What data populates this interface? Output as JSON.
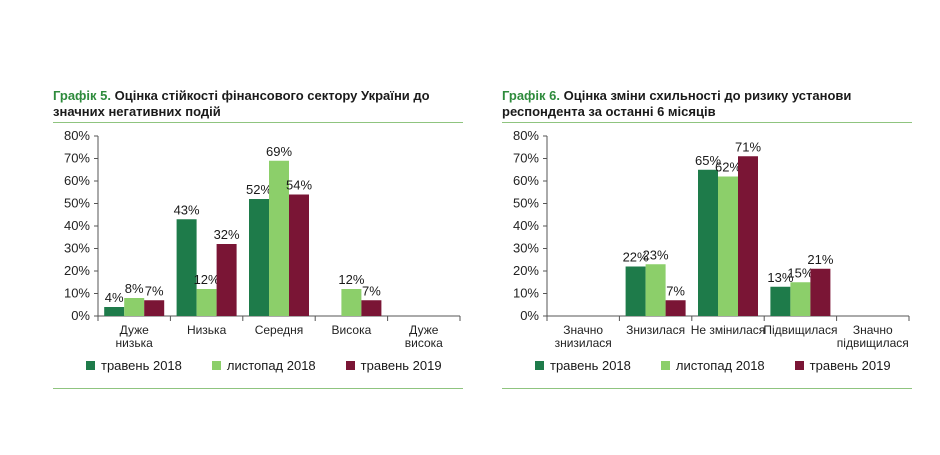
{
  "colors": {
    "s1": "#1e7b4a",
    "s2": "#8ccf6a",
    "s3": "#7a1535",
    "title_num": "#2e8b3c"
  },
  "legend": [
    "травень 2018",
    "листопад 2018",
    "травень 2019"
  ],
  "charts": [
    {
      "title_num": "Графік 5.",
      "title_text": " Оцінка стійкості фінансового сектору України до значних негативних подій"
    },
    {
      "title_num": "Графік 6.",
      "title_text": " Оцінка зміни схильності до ризику установи респондента за останні 6 місяців"
    }
  ],
  "chart_data": [
    {
      "type": "bar",
      "title": "Графік 5. Оцінка стійкості фінансового сектору України до значних негативних подій",
      "categories": [
        [
          "Дуже",
          "низька"
        ],
        [
          "Низька"
        ],
        [
          "Середня"
        ],
        [
          "Висока"
        ],
        [
          "Дуже",
          "висока"
        ]
      ],
      "series": [
        {
          "name": "травень 2018",
          "values": [
            4,
            43,
            52,
            null,
            null
          ],
          "labels": [
            "4%",
            "43%",
            "52%",
            "",
            ""
          ]
        },
        {
          "name": "листопад 2018",
          "values": [
            8,
            12,
            69,
            12,
            null
          ],
          "labels": [
            "8%",
            "12%",
            "69%",
            "12%",
            ""
          ]
        },
        {
          "name": "травень 2019",
          "values": [
            7,
            32,
            54,
            7,
            null
          ],
          "labels": [
            "7%",
            "32%",
            "54%",
            "7%",
            ""
          ]
        }
      ],
      "ylim": [
        0,
        80
      ],
      "yticks": [
        "0%",
        "10%",
        "20%",
        "30%",
        "40%",
        "50%",
        "60%",
        "70%",
        "80%"
      ],
      "legend": "bottom",
      "grid": false
    },
    {
      "type": "bar",
      "title": "Графік 6. Оцінка зміни схильності до ризику установи респондента за останні 6 місяців",
      "categories": [
        [
          "Значно",
          "знизилася"
        ],
        [
          "Знизилася"
        ],
        [
          "Не змінилася"
        ],
        [
          "Підвищилася"
        ],
        [
          "Значно",
          "підвищилася"
        ]
      ],
      "series": [
        {
          "name": "травень 2018",
          "values": [
            null,
            22,
            65,
            13,
            null
          ],
          "labels": [
            "",
            "22%",
            "65%",
            "13%",
            ""
          ]
        },
        {
          "name": "листопад 2018",
          "values": [
            null,
            23,
            62,
            15,
            null
          ],
          "labels": [
            "",
            "23%",
            "62%",
            "15%",
            ""
          ]
        },
        {
          "name": "травень 2019",
          "values": [
            null,
            7,
            71,
            21,
            null
          ],
          "labels": [
            "",
            "7%",
            "71%",
            "21%",
            ""
          ]
        }
      ],
      "ylim": [
        0,
        80
      ],
      "yticks": [
        "0%",
        "10%",
        "20%",
        "30%",
        "40%",
        "50%",
        "60%",
        "70%",
        "80%"
      ],
      "legend": "bottom",
      "grid": false
    }
  ]
}
